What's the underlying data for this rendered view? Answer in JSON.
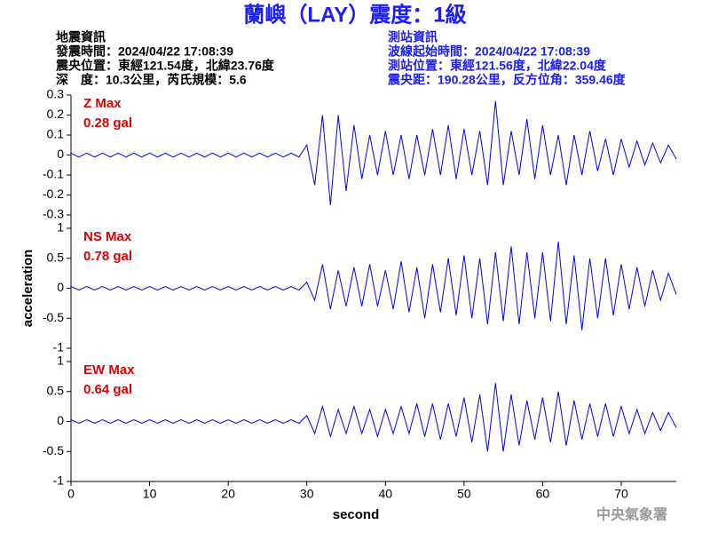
{
  "header": {
    "title": "蘭嶼（LAY）震度：1級",
    "left": [
      "地震資訊",
      "發震時間：2024/04/22 17:08:39",
      "震央位置：東經121.54度，北緯23.76度",
      "深　度：10.3公里，芮氏規模：5.6"
    ],
    "right": [
      "測站資訊",
      "波線起始時間：2024/04/22 17:08:39",
      "測站位置：東經121.56度，北緯22.04度",
      "震央距：190.28公里，反方位角：359.46度"
    ],
    "credit": "中央氣象署"
  },
  "chart_data": [
    {
      "type": "line",
      "annotations": [
        "Z Max",
        "0.28 gal"
      ],
      "annotation_color": "#e00000",
      "color": "#0000ff",
      "xlim": [
        0,
        77
      ],
      "ylim": [
        -0.3,
        0.3
      ],
      "yticks": [
        0.3,
        0.2,
        0.1,
        0,
        -0.1,
        -0.2,
        -0.3
      ],
      "x": [
        0,
        1,
        2,
        3,
        4,
        5,
        6,
        7,
        8,
        9,
        10,
        11,
        12,
        13,
        14,
        15,
        16,
        17,
        18,
        19,
        20,
        21,
        22,
        23,
        24,
        25,
        26,
        27,
        28,
        29,
        30,
        31,
        32,
        33,
        34,
        35,
        36,
        37,
        38,
        39,
        40,
        41,
        42,
        43,
        44,
        45,
        46,
        47,
        48,
        49,
        50,
        51,
        52,
        53,
        54,
        55,
        56,
        57,
        58,
        59,
        60,
        61,
        62,
        63,
        64,
        65,
        66,
        67,
        68,
        69,
        70,
        71,
        72,
        73,
        74,
        75,
        76,
        77
      ],
      "series": [
        {
          "color": "#0000ff",
          "values": [
            0.01,
            -0.01,
            0.01,
            -0.01,
            0.01,
            -0.01,
            0.01,
            -0.01,
            0.01,
            -0.01,
            0.01,
            -0.01,
            0.01,
            -0.01,
            0.01,
            -0.01,
            0.01,
            -0.01,
            0.01,
            -0.01,
            0.01,
            -0.01,
            0.01,
            -0.01,
            0.01,
            -0.01,
            0.01,
            -0.01,
            0.01,
            -0.01,
            0.05,
            -0.15,
            0.2,
            -0.25,
            0.2,
            -0.18,
            0.15,
            -0.12,
            0.1,
            -0.1,
            0.12,
            -0.1,
            0.1,
            -0.12,
            0.1,
            -0.1,
            0.13,
            -0.1,
            0.15,
            -0.12,
            0.13,
            -0.1,
            0.12,
            -0.15,
            0.27,
            -0.15,
            0.12,
            -0.1,
            0.18,
            -0.12,
            0.15,
            -0.1,
            0.1,
            -0.15,
            0.1,
            -0.1,
            0.12,
            -0.08,
            0.08,
            -0.1,
            0.08,
            -0.06,
            0.07,
            -0.05,
            0.06,
            -0.04,
            0.05,
            -0.02
          ]
        }
      ]
    },
    {
      "type": "line",
      "annotations": [
        "NS Max",
        "0.78 gal"
      ],
      "annotation_color": "#e00000",
      "color": "#0000ff",
      "ylabel": "acceleration",
      "xlim": [
        0,
        77
      ],
      "ylim": [
        -1,
        1
      ],
      "yticks": [
        1,
        0.5,
        0,
        -0.5,
        -1
      ],
      "x": [
        0,
        1,
        2,
        3,
        4,
        5,
        6,
        7,
        8,
        9,
        10,
        11,
        12,
        13,
        14,
        15,
        16,
        17,
        18,
        19,
        20,
        21,
        22,
        23,
        24,
        25,
        26,
        27,
        28,
        29,
        30,
        31,
        32,
        33,
        34,
        35,
        36,
        37,
        38,
        39,
        40,
        41,
        42,
        43,
        44,
        45,
        46,
        47,
        48,
        49,
        50,
        51,
        52,
        53,
        54,
        55,
        56,
        57,
        58,
        59,
        60,
        61,
        62,
        63,
        64,
        65,
        66,
        67,
        68,
        69,
        70,
        71,
        72,
        73,
        74,
        75,
        76,
        77
      ],
      "series": [
        {
          "color": "#0000ff",
          "values": [
            0.03,
            -0.03,
            0.03,
            -0.03,
            0.03,
            -0.03,
            0.03,
            -0.03,
            0.03,
            -0.03,
            0.03,
            -0.03,
            0.03,
            -0.03,
            0.03,
            -0.03,
            0.03,
            -0.03,
            0.03,
            -0.03,
            0.03,
            -0.03,
            0.03,
            -0.03,
            0.03,
            -0.03,
            0.03,
            -0.03,
            0.03,
            -0.03,
            0.1,
            -0.2,
            0.4,
            -0.35,
            0.3,
            -0.3,
            0.35,
            -0.3,
            0.4,
            -0.3,
            0.3,
            -0.35,
            0.45,
            -0.4,
            0.35,
            -0.5,
            0.4,
            -0.4,
            0.5,
            -0.45,
            0.55,
            -0.5,
            0.5,
            -0.6,
            0.6,
            -0.55,
            0.7,
            -0.6,
            0.6,
            -0.5,
            0.6,
            -0.55,
            0.78,
            -0.6,
            0.55,
            -0.7,
            0.5,
            -0.5,
            0.5,
            -0.45,
            0.4,
            -0.35,
            0.35,
            -0.3,
            0.3,
            -0.2,
            0.25,
            -0.1
          ]
        }
      ]
    },
    {
      "type": "line",
      "annotations": [
        "EW Max",
        "0.64 gal"
      ],
      "annotation_color": "#e00000",
      "color": "#0000ff",
      "xlabel": "second",
      "xlim": [
        0,
        77
      ],
      "xticks": [
        0,
        10,
        20,
        30,
        40,
        50,
        60,
        70
      ],
      "ylim": [
        -1,
        1
      ],
      "yticks": [
        1,
        0.5,
        0,
        -0.5,
        -1
      ],
      "x": [
        0,
        1,
        2,
        3,
        4,
        5,
        6,
        7,
        8,
        9,
        10,
        11,
        12,
        13,
        14,
        15,
        16,
        17,
        18,
        19,
        20,
        21,
        22,
        23,
        24,
        25,
        26,
        27,
        28,
        29,
        30,
        31,
        32,
        33,
        34,
        35,
        36,
        37,
        38,
        39,
        40,
        41,
        42,
        43,
        44,
        45,
        46,
        47,
        48,
        49,
        50,
        51,
        52,
        53,
        54,
        55,
        56,
        57,
        58,
        59,
        60,
        61,
        62,
        63,
        64,
        65,
        66,
        67,
        68,
        69,
        70,
        71,
        72,
        73,
        74,
        75,
        76,
        77
      ],
      "series": [
        {
          "color": "#0000ff",
          "values": [
            0.03,
            -0.03,
            0.03,
            -0.03,
            0.03,
            -0.03,
            0.03,
            -0.03,
            0.03,
            -0.03,
            0.03,
            -0.03,
            0.03,
            -0.03,
            0.03,
            -0.03,
            0.03,
            -0.03,
            0.03,
            -0.03,
            0.03,
            -0.03,
            0.03,
            -0.03,
            0.03,
            -0.03,
            0.03,
            -0.03,
            0.03,
            -0.03,
            0.1,
            -0.2,
            0.25,
            -0.25,
            0.2,
            -0.2,
            0.25,
            -0.2,
            0.2,
            -0.25,
            0.2,
            -0.2,
            0.25,
            -0.2,
            0.3,
            -0.25,
            0.3,
            -0.3,
            0.3,
            -0.25,
            0.4,
            -0.35,
            0.45,
            -0.5,
            0.64,
            -0.5,
            0.45,
            -0.4,
            0.35,
            -0.3,
            0.4,
            -0.35,
            0.5,
            -0.4,
            0.35,
            -0.3,
            0.3,
            -0.25,
            0.3,
            -0.25,
            0.25,
            -0.2,
            0.2,
            -0.2,
            0.15,
            -0.15,
            0.15,
            -0.1
          ]
        }
      ]
    }
  ]
}
